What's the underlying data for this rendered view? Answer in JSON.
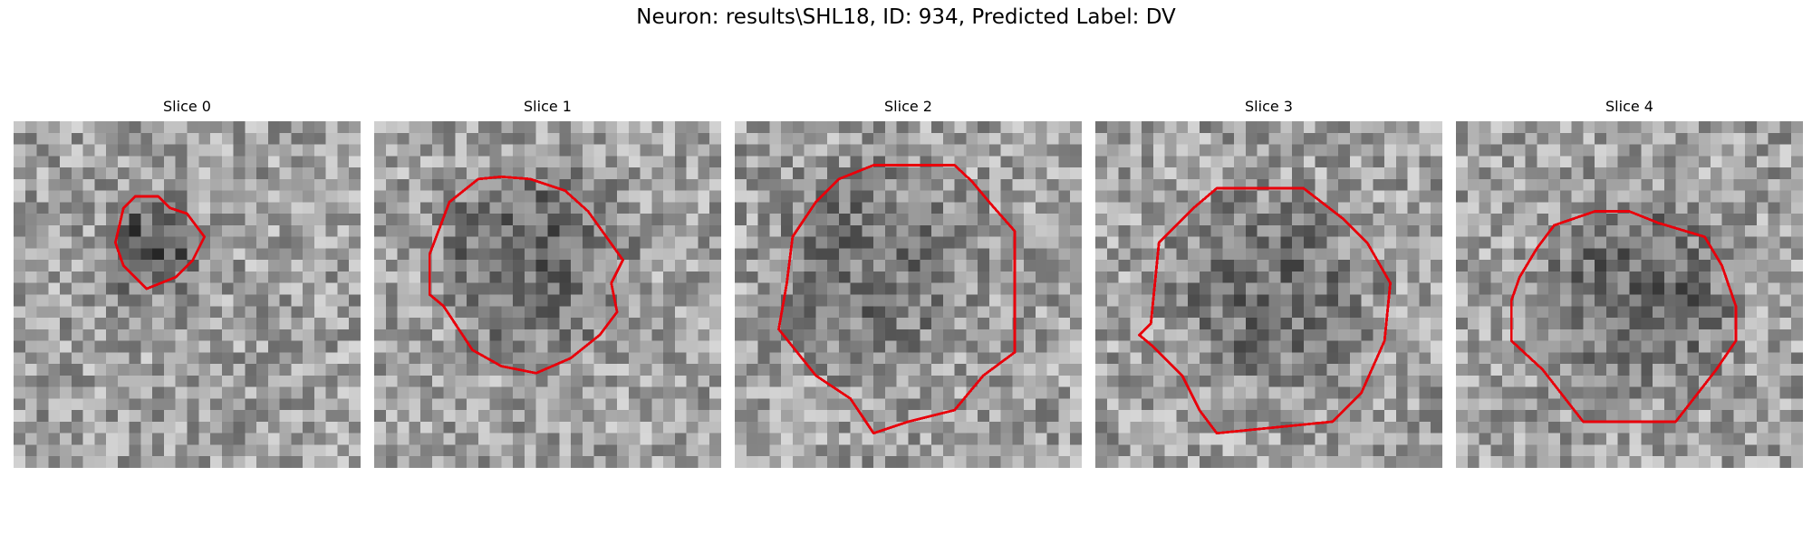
{
  "figure": {
    "suptitle": "Neuron: results\\SHL18, ID: 934, Predicted Label: DV"
  },
  "panels": [
    {
      "title": "Slice 0",
      "outline_color": "#e8000b"
    },
    {
      "title": "Slice 1",
      "outline_color": "#e8000b"
    },
    {
      "title": "Slice 2",
      "outline_color": "#e8000b"
    },
    {
      "title": "Slice 3",
      "outline_color": "#e8000b"
    },
    {
      "title": "Slice 4",
      "outline_color": "#e8000b"
    }
  ],
  "style": {
    "colormap": "grayscale",
    "grid_cells": 30
  }
}
